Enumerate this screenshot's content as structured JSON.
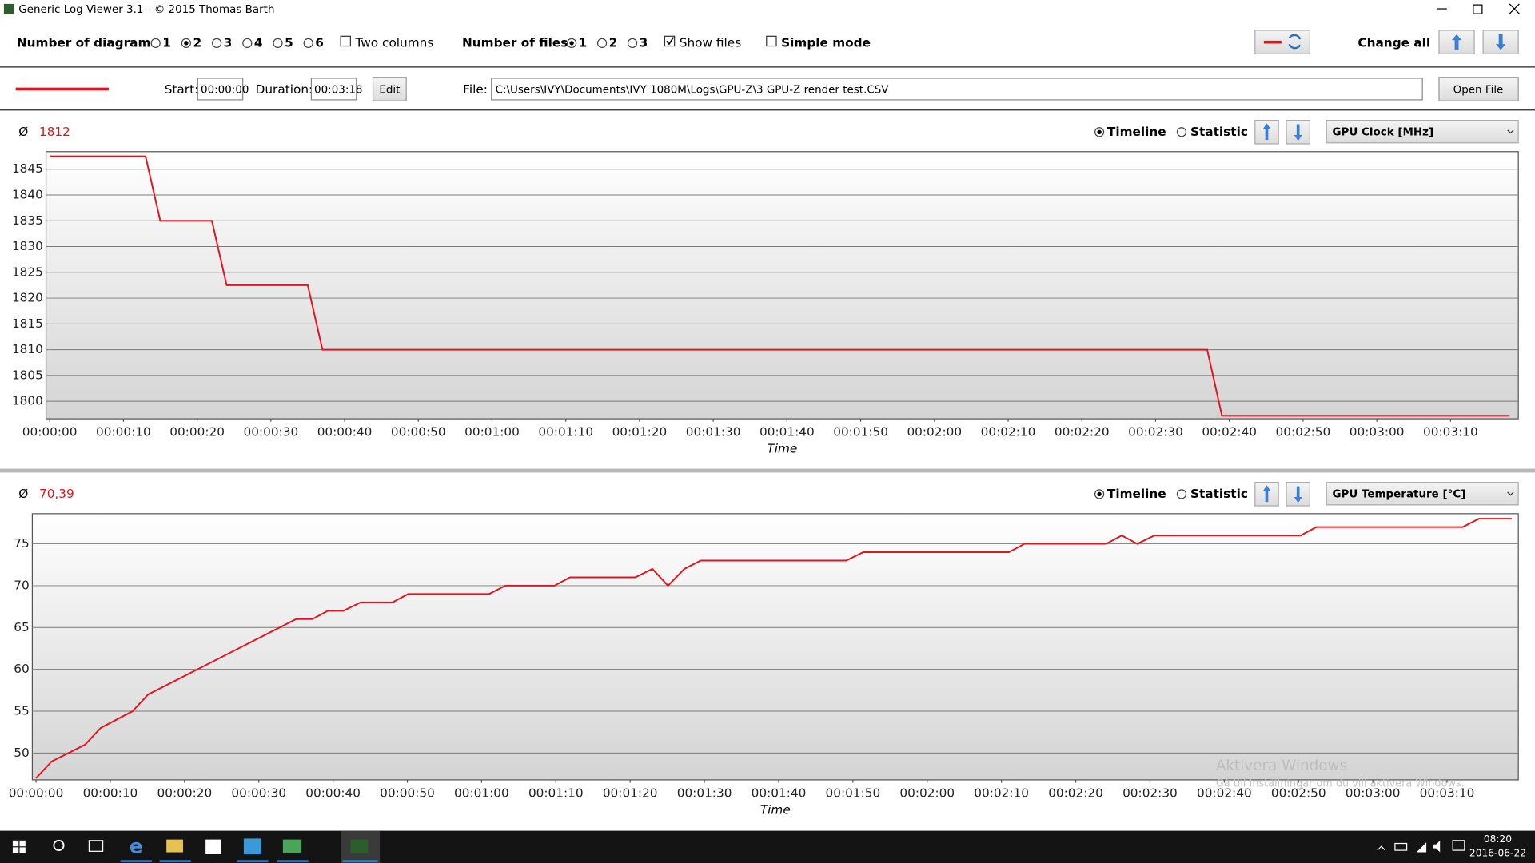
{
  "window": {
    "title": "Generic Log Viewer 3.1 - © 2015 Thomas Barth"
  },
  "toolbar": {
    "diagrams_label": "Number of diagrams",
    "diagram_options": [
      "1",
      "2",
      "3",
      "4",
      "5",
      "6"
    ],
    "two_columns": "Two columns",
    "files_label": "Number of files",
    "file_options": [
      "1",
      "2",
      "3"
    ],
    "show_files": "Show files",
    "simple_mode": "Simple mode",
    "change_all": "Change all"
  },
  "file_bar": {
    "start_label": "Start:",
    "start": "00:00:00",
    "duration_label": "Duration:",
    "duration": "00:03:18",
    "edit": "Edit",
    "file_label": "File:",
    "file_path": "C:\\Users\\IVY\\Documents\\IVY 1080M\\Logs\\GPU-Z\\3 GPU-Z render test.CSV",
    "open_file": "Open File"
  },
  "chart_data": [
    {
      "type": "line",
      "symbol": "Ø",
      "average": "1812",
      "timeline": "Timeline",
      "statistic": "Statistic",
      "channel": "GPU Clock [MHz]",
      "xlabel": "Time",
      "color": "#e3141e",
      "grid": true,
      "x": [
        0,
        13,
        15,
        22,
        24,
        35,
        37,
        157,
        159,
        198
      ],
      "values": [
        1847.5,
        1847.5,
        1835,
        1835,
        1822.5,
        1822.5,
        1810,
        1810,
        1797.2,
        1797.2
      ],
      "xlim": [
        -0.5,
        199.2
      ],
      "ylim": [
        1796.6,
        1848.4
      ],
      "yticks": [
        1800,
        1805,
        1810,
        1815,
        1820,
        1825,
        1830,
        1835,
        1840,
        1845
      ],
      "xticks": [
        {
          "value": 0,
          "label": "00:00:00"
        },
        {
          "value": 10,
          "label": "00:00:10"
        },
        {
          "value": 20,
          "label": "00:00:20"
        },
        {
          "value": 30,
          "label": "00:00:30"
        },
        {
          "value": 40,
          "label": "00:00:40"
        },
        {
          "value": 50,
          "label": "00:00:50"
        },
        {
          "value": 60,
          "label": "00:01:00"
        },
        {
          "value": 70,
          "label": "00:01:10"
        },
        {
          "value": 80,
          "label": "00:01:20"
        },
        {
          "value": 90,
          "label": "00:01:30"
        },
        {
          "value": 100,
          "label": "00:01:40"
        },
        {
          "value": 110,
          "label": "00:01:50"
        },
        {
          "value": 120,
          "label": "00:02:00"
        },
        {
          "value": 130,
          "label": "00:02:10"
        },
        {
          "value": 140,
          "label": "00:02:20"
        },
        {
          "value": 150,
          "label": "00:02:30"
        },
        {
          "value": 160,
          "label": "00:02:40"
        },
        {
          "value": 170,
          "label": "00:02:50"
        },
        {
          "value": 180,
          "label": "00:03:00"
        },
        {
          "value": 190,
          "label": "00:03:10"
        }
      ]
    },
    {
      "type": "line",
      "symbol": "Ø",
      "average": "70,39",
      "timeline": "Timeline",
      "statistic": "Statistic",
      "channel": "GPU Temperature [°C]",
      "xlabel": "Time",
      "color": "#e3141e",
      "grid": true,
      "x": [
        0,
        2.1,
        6.6,
        8.7,
        13,
        15.1,
        35,
        37.2,
        39.3,
        41.4,
        43.7,
        48,
        50.1,
        61,
        63.2,
        69.8,
        71.9,
        80.7,
        83,
        85.1,
        87.3,
        89.5,
        109.1,
        111.4,
        131,
        133.1,
        144.1,
        146.2,
        148.3,
        150.6,
        170.3,
        172.4,
        192.1,
        194.3,
        198.7
      ],
      "values": [
        47,
        49,
        51,
        53,
        55,
        57,
        66,
        66,
        67,
        67,
        68,
        68,
        69,
        69,
        70,
        70,
        71,
        71,
        72,
        70,
        72,
        73,
        73,
        74,
        74,
        75,
        75,
        76,
        75,
        76,
        76,
        77,
        77,
        78,
        78
      ],
      "xlim": [
        -0.5,
        199.6
      ],
      "ylim": [
        46.8,
        78.6
      ],
      "yticks": [
        50,
        55,
        60,
        65,
        70,
        75
      ],
      "xticks": [
        {
          "value": 0,
          "label": "00:00:00"
        },
        {
          "value": 10,
          "label": "00:00:10"
        },
        {
          "value": 20,
          "label": "00:00:20"
        },
        {
          "value": 30,
          "label": "00:00:30"
        },
        {
          "value": 40,
          "label": "00:00:40"
        },
        {
          "value": 50,
          "label": "00:00:50"
        },
        {
          "value": 60,
          "label": "00:01:00"
        },
        {
          "value": 70,
          "label": "00:01:10"
        },
        {
          "value": 80,
          "label": "00:01:20"
        },
        {
          "value": 90,
          "label": "00:01:30"
        },
        {
          "value": 100,
          "label": "00:01:40"
        },
        {
          "value": 110,
          "label": "00:01:50"
        },
        {
          "value": 120,
          "label": "00:02:00"
        },
        {
          "value": 130,
          "label": "00:02:10"
        },
        {
          "value": 140,
          "label": "00:02:20"
        },
        {
          "value": 150,
          "label": "00:02:30"
        },
        {
          "value": 160,
          "label": "00:02:40"
        },
        {
          "value": 170,
          "label": "00:02:50"
        },
        {
          "value": 180,
          "label": "00:03:00"
        },
        {
          "value": 190,
          "label": "00:03:10"
        }
      ]
    }
  ],
  "watermark": {
    "title": "Aktivera Windows",
    "text": "Gå till Inställningar om du vill aktivera Windows."
  },
  "taskbar": {
    "time": "08:20",
    "date": "2016-06-22"
  }
}
